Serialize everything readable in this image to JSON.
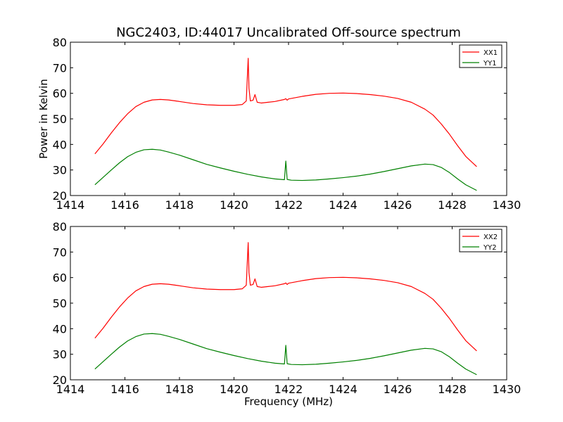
{
  "title": "NGC2403, ID:44017 Uncalibrated Off-source spectrum",
  "colors": {
    "xx": "#ff0000",
    "yy": "#008000"
  },
  "chart_data": [
    {
      "type": "line",
      "title": "NGC2403, ID:44017 Uncalibrated Off-source spectrum",
      "xlabel": "",
      "ylabel": "Power in Kelvin",
      "xlim": [
        1414,
        1430
      ],
      "ylim": [
        20,
        80
      ],
      "xticks": [
        "1414",
        "1416",
        "1418",
        "1420",
        "1422",
        "1424",
        "1426",
        "1428",
        "1430"
      ],
      "yticks": [
        "20",
        "30",
        "40",
        "50",
        "60",
        "70",
        "80"
      ],
      "legend_position": "top-right",
      "grid": false,
      "series": [
        {
          "name": "XX1",
          "color": "#ff0000",
          "x": [
            1414.9,
            1415.2,
            1415.5,
            1415.8,
            1416.1,
            1416.4,
            1416.7,
            1417.0,
            1417.3,
            1417.6,
            1418.0,
            1418.5,
            1419.0,
            1419.5,
            1420.0,
            1420.3,
            1420.45,
            1420.52,
            1420.55,
            1420.6,
            1420.7,
            1420.77,
            1420.85,
            1421.0,
            1421.5,
            1421.85,
            1421.9,
            1421.95,
            1422.0,
            1422.5,
            1423.0,
            1423.5,
            1424.0,
            1424.5,
            1425.0,
            1425.5,
            1426.0,
            1426.5,
            1427.0,
            1427.3,
            1427.6,
            1427.9,
            1428.2,
            1428.5,
            1428.9
          ],
          "y": [
            36.3,
            40.2,
            44.5,
            48.5,
            52.0,
            54.8,
            56.5,
            57.4,
            57.6,
            57.4,
            56.8,
            56.0,
            55.5,
            55.3,
            55.3,
            55.6,
            57.0,
            73.7,
            62.0,
            57.0,
            57.3,
            59.5,
            56.5,
            56.2,
            56.8,
            57.6,
            57.9,
            57.3,
            57.8,
            58.8,
            59.6,
            60.0,
            60.1,
            59.9,
            59.5,
            58.9,
            58.0,
            56.5,
            53.8,
            51.5,
            48.0,
            44.0,
            39.5,
            35.3,
            31.3
          ]
        },
        {
          "name": "YY1",
          "color": "#008000",
          "x": [
            1414.9,
            1415.2,
            1415.5,
            1415.8,
            1416.1,
            1416.4,
            1416.7,
            1417.0,
            1417.3,
            1417.6,
            1418.0,
            1418.5,
            1419.0,
            1419.5,
            1420.0,
            1420.5,
            1421.0,
            1421.5,
            1421.85,
            1421.9,
            1421.95,
            1422.1,
            1422.5,
            1423.0,
            1423.5,
            1424.0,
            1424.5,
            1425.0,
            1425.5,
            1426.0,
            1426.5,
            1427.0,
            1427.3,
            1427.6,
            1427.9,
            1428.2,
            1428.5,
            1428.9
          ],
          "y": [
            24.2,
            27.1,
            30.0,
            32.8,
            35.2,
            36.9,
            37.9,
            38.1,
            37.8,
            37.0,
            35.8,
            34.0,
            32.2,
            30.8,
            29.5,
            28.3,
            27.3,
            26.5,
            26.2,
            33.5,
            26.3,
            26.0,
            25.9,
            26.1,
            26.5,
            27.0,
            27.6,
            28.4,
            29.4,
            30.5,
            31.6,
            32.3,
            32.1,
            31.0,
            29.0,
            26.5,
            24.2,
            22.0
          ]
        }
      ]
    },
    {
      "type": "line",
      "title": "",
      "xlabel": "Frequency (MHz)",
      "ylabel": "",
      "xlim": [
        1414,
        1430
      ],
      "ylim": [
        20,
        80
      ],
      "xticks": [
        "1414",
        "1416",
        "1418",
        "1420",
        "1422",
        "1424",
        "1426",
        "1428",
        "1430"
      ],
      "yticks": [
        "20",
        "30",
        "40",
        "50",
        "60",
        "70",
        "80"
      ],
      "legend_position": "top-right",
      "grid": false,
      "series": [
        {
          "name": "XX2",
          "color": "#ff0000",
          "x": [
            1414.9,
            1415.2,
            1415.5,
            1415.8,
            1416.1,
            1416.4,
            1416.7,
            1417.0,
            1417.3,
            1417.6,
            1418.0,
            1418.5,
            1419.0,
            1419.5,
            1420.0,
            1420.3,
            1420.45,
            1420.52,
            1420.55,
            1420.6,
            1420.7,
            1420.77,
            1420.85,
            1421.0,
            1421.5,
            1421.85,
            1421.9,
            1421.95,
            1422.0,
            1422.5,
            1423.0,
            1423.5,
            1424.0,
            1424.5,
            1425.0,
            1425.5,
            1426.0,
            1426.5,
            1427.0,
            1427.3,
            1427.6,
            1427.9,
            1428.2,
            1428.5,
            1428.9
          ],
          "y": [
            36.3,
            40.2,
            44.5,
            48.5,
            52.0,
            54.8,
            56.5,
            57.4,
            57.6,
            57.4,
            56.8,
            56.0,
            55.5,
            55.3,
            55.3,
            55.6,
            57.0,
            73.7,
            62.0,
            57.0,
            57.3,
            59.5,
            56.5,
            56.2,
            56.8,
            57.6,
            57.9,
            57.3,
            57.8,
            58.8,
            59.6,
            60.0,
            60.1,
            59.9,
            59.5,
            58.9,
            58.0,
            56.5,
            53.8,
            51.5,
            48.0,
            44.0,
            39.5,
            35.3,
            31.3
          ]
        },
        {
          "name": "YY2",
          "color": "#008000",
          "x": [
            1414.9,
            1415.2,
            1415.5,
            1415.8,
            1416.1,
            1416.4,
            1416.7,
            1417.0,
            1417.3,
            1417.6,
            1418.0,
            1418.5,
            1419.0,
            1419.5,
            1420.0,
            1420.5,
            1421.0,
            1421.5,
            1421.85,
            1421.9,
            1421.95,
            1422.1,
            1422.5,
            1423.0,
            1423.5,
            1424.0,
            1424.5,
            1425.0,
            1425.5,
            1426.0,
            1426.5,
            1427.0,
            1427.3,
            1427.6,
            1427.9,
            1428.2,
            1428.5,
            1428.9
          ],
          "y": [
            24.2,
            27.1,
            30.0,
            32.8,
            35.2,
            36.9,
            37.9,
            38.1,
            37.8,
            37.0,
            35.8,
            34.0,
            32.2,
            30.8,
            29.5,
            28.3,
            27.3,
            26.5,
            26.2,
            33.5,
            26.3,
            26.0,
            25.9,
            26.1,
            26.5,
            27.0,
            27.6,
            28.4,
            29.4,
            30.5,
            31.6,
            32.3,
            32.1,
            31.0,
            29.0,
            26.5,
            24.2,
            22.0
          ]
        }
      ]
    }
  ]
}
